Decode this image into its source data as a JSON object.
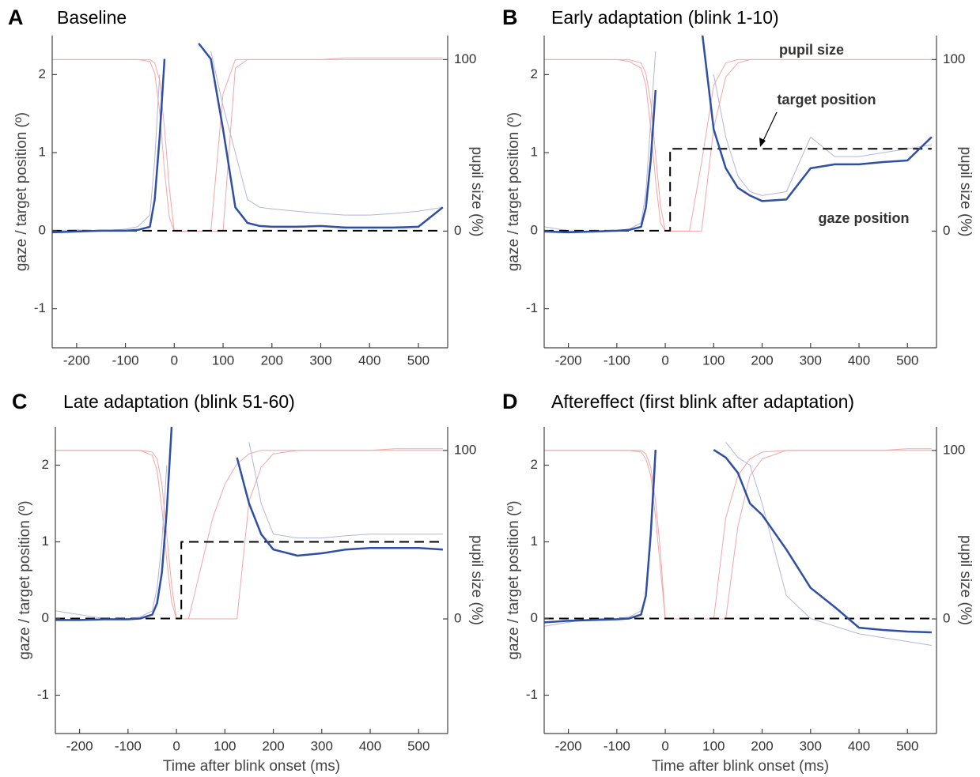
{
  "chart_data": [
    {
      "type": "line",
      "label": "A",
      "title": "Baseline",
      "ylabel": "gaze / target position (º)",
      "y2label": "pupil size (%)",
      "x": [
        -250,
        -200,
        -150,
        -100,
        -75,
        -50,
        -40,
        -30,
        -20,
        -10,
        0,
        10,
        10,
        25,
        50,
        75,
        100,
        125,
        150,
        175,
        200,
        250,
        300,
        350,
        400,
        450,
        500,
        550
      ],
      "xlim": [
        -250,
        560
      ],
      "xticks": [
        -200,
        -100,
        0,
        100,
        200,
        300,
        400,
        500
      ],
      "ylim": [
        -1.5,
        2.5
      ],
      "yticks": [
        -1,
        0,
        1,
        2
      ],
      "y2lim": [
        -68,
        114
      ],
      "y2ticks": [
        0,
        100
      ],
      "series": [
        {
          "color": "#f4a6a6",
          "width": 1,
          "axis": "y2",
          "values": [
            100,
            100,
            100,
            100,
            100,
            99,
            92,
            70,
            35,
            8,
            0,
            0,
            0,
            0,
            0,
            0,
            80,
            100,
            100,
            100,
            100,
            100,
            100,
            100,
            100,
            100,
            100,
            100
          ]
        },
        {
          "color": "#f4a6a6",
          "width": 1,
          "axis": "y2",
          "values": [
            100,
            100,
            100,
            100,
            100,
            100,
            98,
            88,
            60,
            25,
            0,
            0,
            0,
            0,
            0,
            0,
            0,
            95,
            100,
            100,
            100,
            100,
            100,
            101,
            101,
            101,
            101,
            101
          ]
        },
        {
          "color": "#b3b5dc",
          "width": 1,
          "values": [
            0,
            0.01,
            0,
            0.02,
            0.05,
            0.2,
            0.9,
            2.0,
            null,
            null,
            null,
            null,
            null,
            null,
            null,
            2.3,
            1.6,
            1.0,
            0.4,
            0.3,
            0.28,
            0.25,
            0.22,
            0.2,
            0.2,
            0.22,
            0.25,
            0.3
          ]
        },
        {
          "color": "#000000",
          "width": 2,
          "dash": true,
          "values": [
            0,
            0,
            0,
            0,
            0,
            0,
            0,
            0,
            0,
            0,
            0,
            0,
            0,
            0,
            0,
            0,
            0,
            0,
            0,
            0,
            0,
            0,
            0,
            0,
            0,
            0,
            0,
            0
          ]
        },
        {
          "color": "#2e4fa3",
          "width": 2.5,
          "values": [
            -0.02,
            -0.01,
            0,
            0,
            0.01,
            0.05,
            0.4,
            1.2,
            2.2,
            null,
            null,
            null,
            null,
            null,
            2.4,
            2.2,
            1.3,
            0.3,
            0.1,
            0.06,
            0.05,
            0.05,
            0.06,
            0.04,
            0.04,
            0.04,
            0.05,
            0.3
          ]
        }
      ]
    },
    {
      "type": "line",
      "label": "B",
      "title": "Early adaptation (blink 1-10)",
      "ylabel": "gaze / target position (º)",
      "y2label": "pupil size (%)",
      "x": [
        -250,
        -200,
        -150,
        -100,
        -75,
        -50,
        -40,
        -30,
        -20,
        -10,
        0,
        10,
        10,
        25,
        50,
        75,
        100,
        125,
        150,
        175,
        200,
        250,
        300,
        350,
        400,
        450,
        500,
        550
      ],
      "xlim": [
        -250,
        560
      ],
      "xticks": [
        -200,
        -100,
        0,
        100,
        200,
        300,
        400,
        500
      ],
      "ylim": [
        -1.5,
        2.5
      ],
      "yticks": [
        -1,
        0,
        1,
        2
      ],
      "y2lim": [
        -68,
        114
      ],
      "y2ticks": [
        0,
        100
      ],
      "series": [
        {
          "color": "#f4a6a6",
          "width": 1,
          "axis": "y2",
          "values": [
            100,
            100,
            100,
            100,
            99,
            95,
            85,
            60,
            30,
            5,
            0,
            0,
            0,
            0,
            0,
            40,
            85,
            98,
            100,
            100,
            100,
            100,
            100,
            100,
            100,
            100,
            100,
            100
          ]
        },
        {
          "color": "#f4a6a6",
          "width": 1,
          "axis": "y2",
          "values": [
            100,
            100,
            100,
            100,
            100,
            98,
            92,
            75,
            45,
            15,
            0,
            0,
            0,
            0,
            0,
            0,
            60,
            90,
            98,
            100,
            100,
            100,
            100,
            100,
            100,
            100,
            100,
            100
          ]
        },
        {
          "color": "#b3b5dc",
          "width": 1,
          "values": [
            0.05,
            0,
            -0.02,
            0,
            0.02,
            0.1,
            0.5,
            1.4,
            2.3,
            null,
            null,
            null,
            null,
            null,
            null,
            null,
            2.0,
            1.2,
            0.7,
            0.5,
            0.45,
            0.5,
            1.2,
            0.95,
            0.95,
            1.0,
            1.05,
            1.1
          ]
        },
        {
          "color": "#000000",
          "width": 2,
          "dash": true,
          "values": [
            0,
            0,
            0,
            0,
            0,
            0,
            0,
            0,
            0,
            0,
            0,
            0,
            1.05,
            1.05,
            1.05,
            1.05,
            1.05,
            1.05,
            1.05,
            1.05,
            1.05,
            1.05,
            1.05,
            1.05,
            1.05,
            1.05,
            1.05,
            1.05
          ]
        },
        {
          "color": "#2e4fa3",
          "width": 2.5,
          "values": [
            -0.01,
            -0.02,
            -0.01,
            0,
            0.01,
            0.05,
            0.3,
            0.9,
            1.8,
            null,
            null,
            null,
            null,
            null,
            null,
            2.6,
            1.3,
            0.8,
            0.55,
            0.45,
            0.38,
            0.4,
            0.8,
            0.85,
            0.85,
            0.88,
            0.9,
            1.2
          ]
        }
      ],
      "annotations": [
        {
          "text": "pupil size",
          "color": "#e8222a"
        },
        {
          "text": "target position",
          "color": "#000000"
        },
        {
          "text": "gaze position",
          "color": "#2e4fa3"
        }
      ]
    },
    {
      "type": "line",
      "label": "C",
      "title": "Late adaptation (blink 51-60)",
      "ylabel": "gaze / target position (º)",
      "y2label": "pupil size (%)",
      "xlabel": "Time after blink onset (ms)",
      "x": [
        -250,
        -200,
        -150,
        -100,
        -75,
        -50,
        -40,
        -30,
        -20,
        -10,
        0,
        10,
        10,
        25,
        50,
        75,
        100,
        125,
        150,
        175,
        200,
        250,
        300,
        350,
        400,
        450,
        500,
        550
      ],
      "xlim": [
        -250,
        560
      ],
      "xticks": [
        -200,
        -100,
        0,
        100,
        200,
        300,
        400,
        500
      ],
      "ylim": [
        -1.5,
        2.5
      ],
      "yticks": [
        -1,
        0,
        1,
        2
      ],
      "y2lim": [
        -68,
        114
      ],
      "y2ticks": [
        0,
        100
      ],
      "series": [
        {
          "color": "#f4a6a6",
          "width": 1,
          "axis": "y2",
          "values": [
            100,
            100,
            100,
            100,
            100,
            97,
            88,
            65,
            35,
            10,
            0,
            0,
            0,
            0,
            30,
            60,
            80,
            92,
            98,
            100,
            100,
            100,
            100,
            100,
            100,
            100,
            100,
            100
          ]
        },
        {
          "color": "#f4a6a6",
          "width": 1,
          "axis": "y2",
          "values": [
            100,
            100,
            100,
            100,
            100,
            99,
            95,
            80,
            50,
            20,
            0,
            0,
            0,
            0,
            0,
            0,
            0,
            0,
            70,
            90,
            98,
            100,
            100,
            100,
            100,
            101,
            101,
            101
          ]
        },
        {
          "color": "#b3b5dc",
          "width": 1,
          "values": [
            0.1,
            0.05,
            0,
            0,
            0.02,
            0.1,
            0.4,
            1.0,
            2.0,
            null,
            null,
            null,
            null,
            null,
            null,
            null,
            null,
            null,
            2.3,
            1.5,
            1.1,
            1.05,
            1.05,
            1.08,
            1.1,
            1.1,
            1.1,
            1.1
          ]
        },
        {
          "color": "#000000",
          "width": 2,
          "dash": true,
          "values": [
            0,
            0,
            0,
            0,
            0,
            0,
            0,
            0,
            0,
            0,
            0,
            0,
            1,
            1,
            1,
            1,
            1,
            1,
            1,
            1,
            1,
            1,
            1,
            1,
            1,
            1,
            1,
            1
          ]
        },
        {
          "color": "#2e4fa3",
          "width": 2.5,
          "values": [
            -0.02,
            -0.02,
            -0.01,
            -0.01,
            0,
            0.05,
            0.2,
            0.6,
            1.4,
            2.5,
            null,
            null,
            null,
            null,
            null,
            null,
            null,
            2.1,
            1.5,
            1.1,
            0.9,
            0.82,
            0.85,
            0.9,
            0.92,
            0.92,
            0.92,
            0.9
          ]
        }
      ]
    },
    {
      "type": "line",
      "label": "D",
      "title": "Aftereffect (first blink after adaptation)",
      "ylabel": "gaze / target position (º)",
      "y2label": "pupil size (%)",
      "xlabel": "Time after blink onset (ms)",
      "x": [
        -250,
        -200,
        -150,
        -100,
        -75,
        -50,
        -40,
        -30,
        -20,
        -10,
        0,
        10,
        10,
        25,
        50,
        75,
        100,
        125,
        150,
        175,
        200,
        250,
        300,
        350,
        400,
        450,
        500,
        550
      ],
      "xlim": [
        -250,
        560
      ],
      "xticks": [
        -200,
        -100,
        0,
        100,
        200,
        300,
        400,
        500
      ],
      "ylim": [
        -1.5,
        2.5
      ],
      "yticks": [
        -1,
        0,
        1,
        2
      ],
      "y2lim": [
        -68,
        114
      ],
      "y2ticks": [
        0,
        100
      ],
      "series": [
        {
          "color": "#f4a6a6",
          "width": 1,
          "axis": "y2",
          "values": [
            100,
            100,
            100,
            100,
            100,
            100,
            98,
            90,
            70,
            40,
            0,
            0,
            0,
            0,
            0,
            0,
            0,
            60,
            85,
            95,
            99,
            100,
            100,
            100,
            100,
            100,
            100,
            100
          ]
        },
        {
          "color": "#f4a6a6",
          "width": 1,
          "axis": "y2",
          "values": [
            100,
            100,
            100,
            100,
            100,
            99,
            95,
            85,
            60,
            30,
            0,
            0,
            0,
            0,
            0,
            0,
            0,
            0,
            55,
            85,
            95,
            100,
            100,
            100,
            100,
            100,
            101,
            101
          ]
        },
        {
          "color": "#b3b5dc",
          "width": 1,
          "values": [
            -0.1,
            -0.05,
            0,
            0,
            0.02,
            0.1,
            0.3,
            1.0,
            2.0,
            null,
            null,
            null,
            null,
            null,
            null,
            null,
            null,
            2.3,
            2.1,
            2.0,
            1.5,
            0.3,
            0.0,
            -0.1,
            -0.2,
            -0.25,
            -0.3,
            -0.35
          ]
        },
        {
          "color": "#000000",
          "width": 2,
          "dash": true,
          "values": [
            0,
            0,
            0,
            0,
            0,
            0,
            0,
            0,
            0,
            0,
            0,
            0,
            0,
            0,
            0,
            0,
            0,
            0,
            0,
            0,
            0,
            0,
            0,
            0,
            0,
            0,
            0,
            0
          ]
        },
        {
          "color": "#2e4fa3",
          "width": 2.5,
          "values": [
            -0.05,
            -0.03,
            -0.02,
            -0.01,
            0,
            0.05,
            0.3,
            1.1,
            2.2,
            null,
            null,
            null,
            null,
            null,
            null,
            null,
            2.2,
            2.1,
            1.9,
            1.5,
            1.35,
            0.9,
            0.4,
            0.15,
            -0.12,
            -0.15,
            -0.17,
            -0.18
          ]
        }
      ]
    }
  ]
}
